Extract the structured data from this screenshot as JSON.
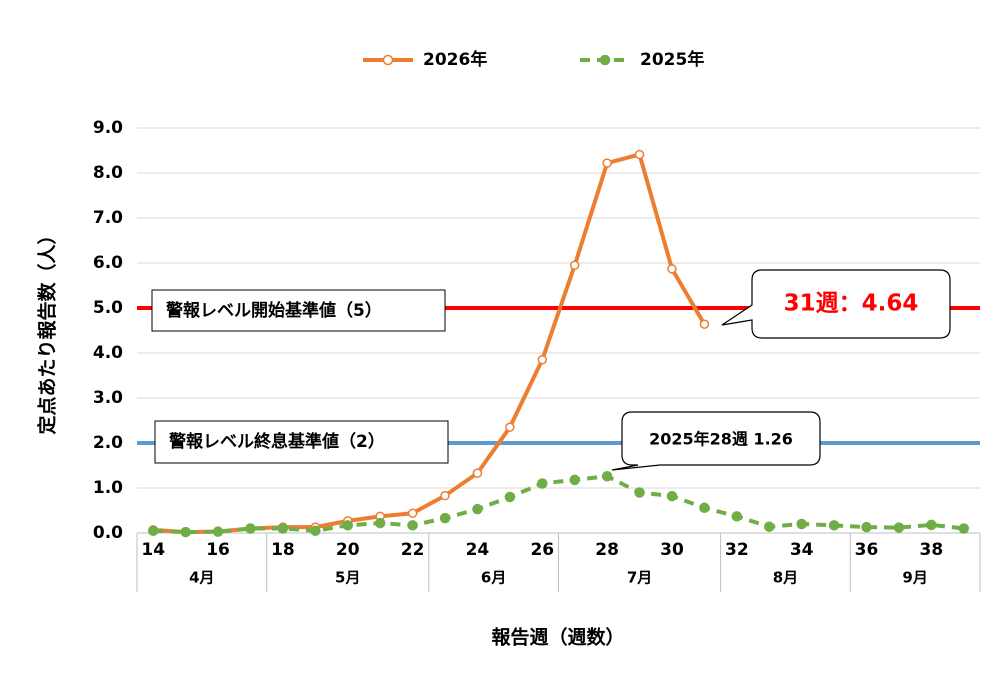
{
  "chart_data": {
    "type": "line",
    "x_label": "報告週（週数）",
    "y_label": "定点あたり報告数（人）",
    "x": [
      14,
      15,
      16,
      17,
      18,
      19,
      20,
      21,
      22,
      23,
      24,
      25,
      26,
      27,
      28,
      29,
      30,
      31,
      32,
      33,
      34,
      35,
      36,
      37,
      38,
      39
    ],
    "series": [
      {
        "name": "2026年",
        "color": "#ed7d31",
        "style": "solid",
        "values": [
          0.07,
          0.02,
          0.03,
          0.1,
          0.13,
          0.13,
          0.27,
          0.37,
          0.44,
          0.83,
          1.33,
          2.35,
          3.85,
          5.95,
          8.22,
          8.41,
          5.87,
          4.64,
          null,
          null,
          null,
          null,
          null,
          null,
          null,
          null
        ]
      },
      {
        "name": "2025年",
        "color": "#70ad47",
        "style": "dashed",
        "values": [
          0.05,
          0.02,
          0.03,
          0.1,
          0.1,
          0.05,
          0.17,
          0.22,
          0.17,
          0.33,
          0.53,
          0.8,
          1.1,
          1.18,
          1.26,
          0.9,
          0.82,
          0.56,
          0.37,
          0.14,
          0.2,
          0.17,
          0.13,
          0.12,
          0.18,
          0.1
        ]
      }
    ],
    "xlim": [
      13.5,
      39.5
    ],
    "xticks": [
      14,
      16,
      18,
      20,
      22,
      24,
      26,
      28,
      30,
      32,
      34,
      36,
      38
    ],
    "ylim": [
      0,
      9
    ],
    "yticks": [
      {
        "value": 0,
        "label": "0.0"
      },
      {
        "value": 1,
        "label": "1.0"
      },
      {
        "value": 2,
        "label": "2.0"
      },
      {
        "value": 3,
        "label": "3.0"
      },
      {
        "value": 4,
        "label": "4.0"
      },
      {
        "value": 5,
        "label": "5.0"
      },
      {
        "value": 6,
        "label": "6.0"
      },
      {
        "value": 7,
        "label": "7.0"
      },
      {
        "value": 8,
        "label": "8.0"
      },
      {
        "value": 9,
        "label": "9.0"
      }
    ],
    "grid": true,
    "legend": "top",
    "months": [
      {
        "label": "4月",
        "start": 13.5,
        "end": 17.5
      },
      {
        "label": "5月",
        "start": 17.5,
        "end": 22.5
      },
      {
        "label": "6月",
        "start": 22.5,
        "end": 26.5
      },
      {
        "label": "7月",
        "start": 26.5,
        "end": 31.5
      },
      {
        "label": "8月",
        "start": 31.5,
        "end": 35.5
      },
      {
        "label": "9月",
        "start": 35.5,
        "end": 39.5
      }
    ],
    "reference_lines": [
      {
        "label": "警報レベル開始基準値（5）",
        "value": 5,
        "color": "#ff0000"
      },
      {
        "label": "警報レベル終息基準値（2）",
        "value": 2,
        "color": "#5b9bd5"
      }
    ],
    "annotations": [
      {
        "text": "31週：4.64"
      },
      {
        "text": "2025年28週 1.26"
      }
    ]
  }
}
